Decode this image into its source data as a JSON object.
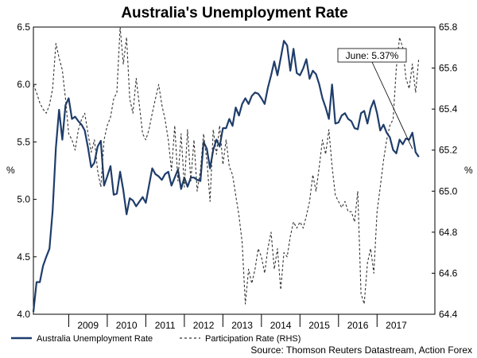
{
  "chart_data": {
    "type": "line",
    "title": "Australia's Unemployment Rate",
    "ylabel_left": "%",
    "ylabel_right": "%",
    "ylim_left": [
      4.0,
      6.5
    ],
    "ylim_right": [
      64.4,
      65.8
    ],
    "yticks_left": [
      "4.0",
      "4.5",
      "5.0",
      "5.5",
      "6.0",
      "6.5"
    ],
    "yticks_right": [
      "64.4",
      "64.6",
      "64.8",
      "65.0",
      "65.2",
      "65.4",
      "65.6",
      "65.8"
    ],
    "xlim": [
      "2008-02",
      "2018-07"
    ],
    "xticks": [
      "2009",
      "2010",
      "2011",
      "2012",
      "2013",
      "2014",
      "2015",
      "2016",
      "2017"
    ],
    "grid": false,
    "legend_position": "bottom",
    "annotation": {
      "text": "June: 5.37%"
    },
    "source": "Source: Thomson Reuters Datastream, Action Forex",
    "start": "2008-02",
    "series": [
      {
        "name": "Australia Unemployment Rate",
        "axis": "left",
        "color": "#1f3d6b",
        "style": "solid",
        "values": [
          4.02,
          4.28,
          4.28,
          4.42,
          4.5,
          4.57,
          4.9,
          5.45,
          5.78,
          5.52,
          5.82,
          5.88,
          5.7,
          5.72,
          5.68,
          5.65,
          5.6,
          5.45,
          5.28,
          5.32,
          5.46,
          5.51,
          5.12,
          5.2,
          5.29,
          5.04,
          5.05,
          5.24,
          5.08,
          4.87,
          5.01,
          4.99,
          4.94,
          4.98,
          5.02,
          4.97,
          5.12,
          5.27,
          5.22,
          5.2,
          5.17,
          5.22,
          5.24,
          5.12,
          5.19,
          5.26,
          5.09,
          5.19,
          5.11,
          5.19,
          5.19,
          5.17,
          5.16,
          5.5,
          5.44,
          5.27,
          5.43,
          5.52,
          5.46,
          5.62,
          5.62,
          5.7,
          5.64,
          5.8,
          5.73,
          5.83,
          5.88,
          5.83,
          5.9,
          5.93,
          5.92,
          5.88,
          5.83,
          5.97,
          6.08,
          6.2,
          6.08,
          6.23,
          6.38,
          6.34,
          6.12,
          6.31,
          6.1,
          6.08,
          6.14,
          6.22,
          6.05,
          6.12,
          6.09,
          6.0,
          5.88,
          5.8,
          5.7,
          6.0,
          5.66,
          5.67,
          5.73,
          5.75,
          5.7,
          5.68,
          5.62,
          5.61,
          5.75,
          5.77,
          5.66,
          5.79,
          5.86,
          5.75,
          5.6,
          5.65,
          5.58,
          5.54,
          5.43,
          5.4,
          5.52,
          5.48,
          5.53,
          5.52,
          5.58,
          5.41,
          5.37
        ]
      },
      {
        "name": "Participation Rate (RHS)",
        "axis": "right",
        "color": "#333333",
        "style": "dashed",
        "values": [
          65.52,
          65.48,
          65.43,
          65.4,
          65.38,
          65.42,
          65.5,
          65.72,
          65.65,
          65.59,
          65.45,
          65.28,
          65.25,
          65.2,
          65.3,
          65.35,
          65.38,
          65.28,
          65.19,
          65.25,
          65.1,
          65.02,
          65.25,
          65.32,
          65.36,
          65.45,
          65.48,
          65.8,
          65.62,
          65.75,
          65.45,
          65.38,
          65.55,
          65.42,
          65.28,
          65.25,
          65.3,
          65.38,
          65.45,
          65.52,
          65.42,
          65.35,
          65.25,
          65.1,
          65.32,
          65.05,
          65.28,
          65.02,
          65.3,
          65.05,
          65.25,
          65.0,
          65.1,
          65.28,
          65.15,
          64.95,
          65.3,
          65.18,
          65.32,
          65.13,
          65.25,
          65.12,
          65.08,
          64.98,
          64.88,
          64.75,
          64.45,
          64.62,
          64.55,
          64.62,
          64.72,
          64.68,
          64.6,
          64.72,
          64.8,
          64.62,
          64.72,
          64.52,
          64.7,
          64.68,
          64.78,
          64.85,
          64.82,
          64.85,
          64.82,
          64.88,
          64.95,
          65.08,
          65.0,
          65.12,
          65.25,
          65.18,
          65.3,
          65.12,
          64.98,
          64.95,
          64.92,
          64.95,
          64.9,
          64.9,
          64.85,
          65.0,
          64.5,
          64.45,
          64.65,
          64.72,
          64.6,
          64.9,
          65.02,
          65.15,
          65.25,
          65.32,
          65.35,
          65.6,
          65.75,
          65.7,
          65.55,
          65.5,
          65.62,
          65.48,
          65.65
        ]
      }
    ]
  }
}
